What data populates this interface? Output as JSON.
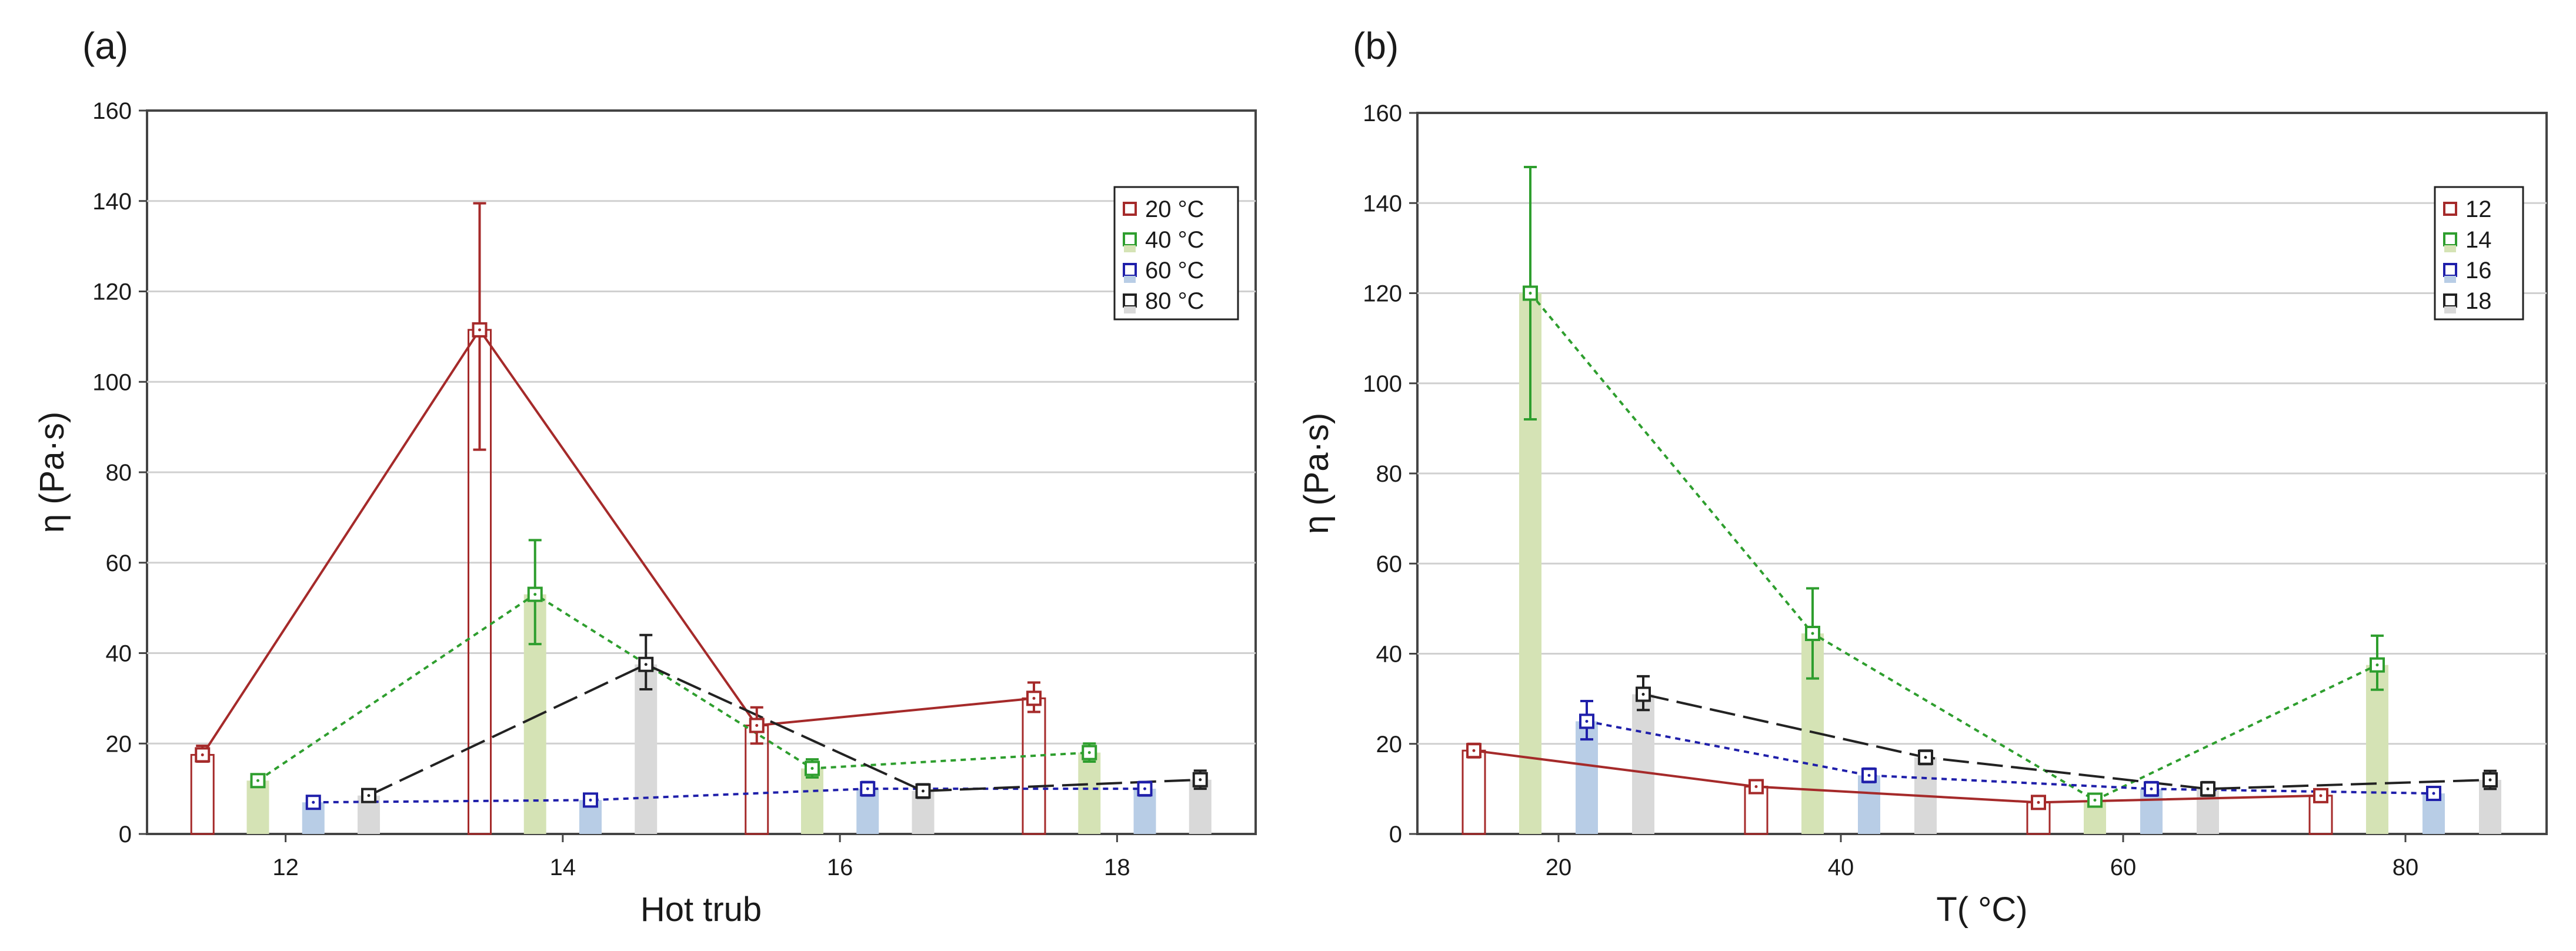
{
  "chart_data": [
    {
      "type": "bar",
      "panel_label": "(a)",
      "title": "",
      "xlabel": "Hot trub",
      "ylabel": "η (Pa·s)",
      "ylim": [
        0,
        160
      ],
      "yticks": [
        0,
        20,
        40,
        60,
        80,
        100,
        120,
        140,
        160
      ],
      "xticks": [
        12,
        14,
        16,
        18
      ],
      "xlim": [
        11,
        19
      ],
      "categories": [
        12,
        14,
        16,
        18
      ],
      "grid": "horizontal",
      "legend_position": "top-right",
      "series": [
        {
          "name": "20 °C",
          "color": "#a52a2a",
          "fill": "none",
          "line": "solid",
          "offset": -0.6,
          "values": [
            17.5,
            111.5,
            24,
            30
          ],
          "err_low": [
            16,
            85,
            20,
            27
          ],
          "err_high": [
            19.5,
            139.5,
            28,
            33.5
          ]
        },
        {
          "name": "40 °C",
          "color": "#2e9e2e",
          "fill": "#d5e3b5",
          "line": "dotted",
          "offset": -0.2,
          "values": [
            11.8,
            53,
            14.5,
            18
          ],
          "err_low": [
            10.5,
            42,
            12.5,
            16
          ],
          "err_high": [
            13,
            65,
            16.5,
            20
          ]
        },
        {
          "name": "60 °C",
          "color": "#1f1faa",
          "fill": "#b8cde6",
          "line": "dotted",
          "offset": 0.2,
          "values": [
            7,
            7.5,
            10,
            10
          ],
          "err_low": [
            6,
            6.5,
            8.5,
            8.5
          ],
          "err_high": [
            8,
            8.5,
            11.5,
            11.5
          ]
        },
        {
          "name": "80 °C",
          "color": "#222222",
          "fill": "#d9d9d9",
          "line": "dashed",
          "offset": 0.6,
          "values": [
            8.5,
            37.5,
            9.5,
            12
          ],
          "err_low": [
            7.5,
            32,
            8,
            10
          ],
          "err_high": [
            9.5,
            44,
            11,
            14
          ]
        }
      ]
    },
    {
      "type": "bar",
      "panel_label": "(b)",
      "title": "",
      "xlabel": "T( °C)",
      "ylabel": "η (Pa·s)",
      "ylim": [
        0,
        160
      ],
      "yticks": [
        0,
        20,
        40,
        60,
        80,
        100,
        120,
        140,
        160
      ],
      "xticks": [
        20,
        40,
        60,
        80
      ],
      "xlim": [
        10,
        90
      ],
      "categories": [
        20,
        40,
        60,
        80
      ],
      "grid": "horizontal",
      "legend_position": "top-right",
      "series": [
        {
          "name": "12",
          "color": "#a52a2a",
          "fill": "none",
          "line": "solid",
          "offset": -6,
          "values": [
            18.5,
            10.5,
            7,
            8.5
          ],
          "err_low": [
            17,
            9.5,
            6,
            7.5
          ],
          "err_high": [
            20,
            11.5,
            8,
            9.5
          ]
        },
        {
          "name": "14",
          "color": "#2e9e2e",
          "fill": "#d5e3b5",
          "line": "dotted",
          "offset": -2,
          "values": [
            120,
            44.5,
            7.5,
            37.5
          ],
          "err_low": [
            92,
            34.5,
            6.5,
            32
          ],
          "err_high": [
            148,
            54.5,
            8.5,
            44
          ]
        },
        {
          "name": "16",
          "color": "#1f1faa",
          "fill": "#b8cde6",
          "line": "dotted",
          "offset": 2,
          "values": [
            25,
            13,
            10,
            9
          ],
          "err_low": [
            21,
            11.5,
            8.5,
            8
          ],
          "err_high": [
            29.5,
            14.5,
            11.5,
            10
          ]
        },
        {
          "name": "18",
          "color": "#222222",
          "fill": "#d9d9d9",
          "line": "dashed",
          "offset": 6,
          "values": [
            31,
            17,
            10,
            12
          ],
          "err_low": [
            27.5,
            15.5,
            8.5,
            10
          ],
          "err_high": [
            35,
            18.5,
            11.5,
            14
          ]
        }
      ]
    }
  ]
}
